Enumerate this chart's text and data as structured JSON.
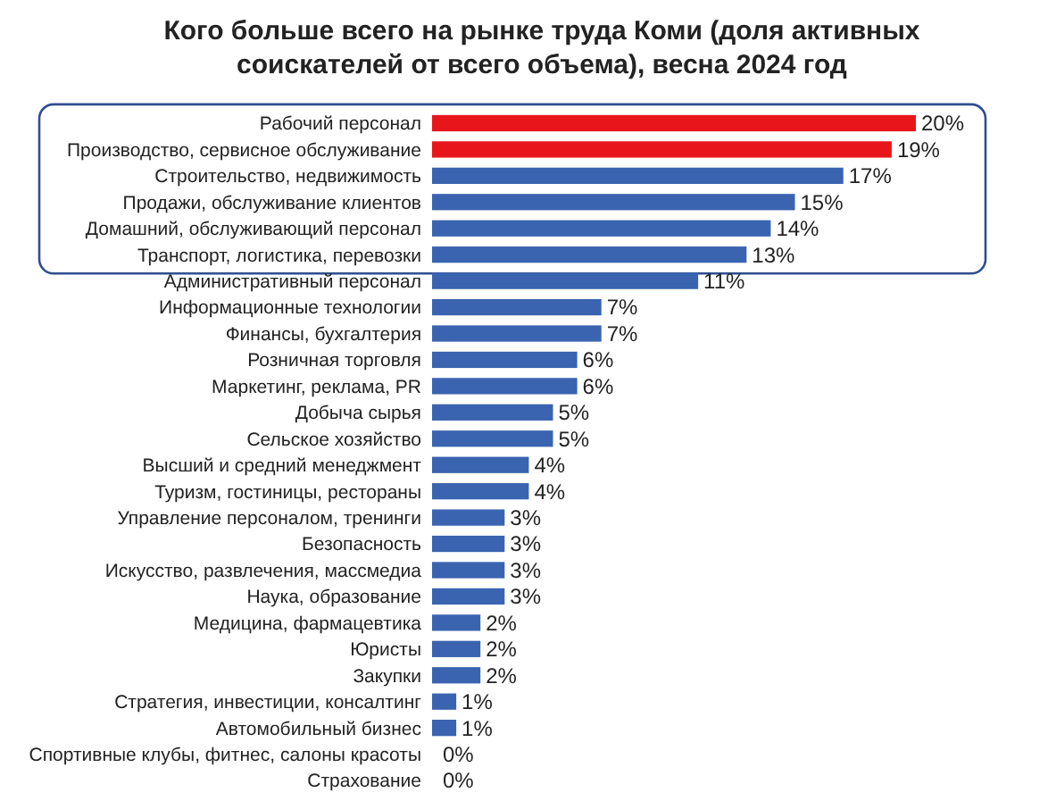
{
  "chart_data": {
    "type": "bar",
    "orientation": "horizontal",
    "title": "Кого больше всего на рынке труда Коми (доля активных\nсоискателей от всего объема), весна 2024 год",
    "categories": [
      "Рабочий персонал",
      "Производство, сервисное обслуживание",
      "Строительство, недвижимость",
      "Продажи, обслуживание клиентов",
      "Домашний, обслуживающий персонал",
      "Транспорт, логистика, перевозки",
      "Административный персонал",
      "Информационные технологии",
      "Финансы, бухгалтерия",
      "Розничная торговля",
      "Маркетинг, реклама, PR",
      "Добыча сырья",
      "Сельское хозяйство",
      "Высший и средний менеджмент",
      "Туризм, гостиницы, рестораны",
      "Управление персоналом, тренинги",
      "Безопасность",
      "Искусство, развлечения, массмедиа",
      "Наука, образование",
      "Медицина, фармацевтика",
      "Юристы",
      "Закупки",
      "Стратегия, инвестиции, консалтинг",
      "Автомобильный бизнес",
      "Спортивные клубы, фитнес, салоны красоты",
      "Страхование"
    ],
    "values": [
      20,
      19,
      17,
      15,
      14,
      13,
      11,
      7,
      7,
      6,
      6,
      5,
      5,
      4,
      4,
      3,
      3,
      3,
      3,
      2,
      2,
      2,
      1,
      1,
      0,
      0
    ],
    "value_labels": [
      "20%",
      "19%",
      "17%",
      "15%",
      "14%",
      "13%",
      "11%",
      "7%",
      "7%",
      "6%",
      "6%",
      "5%",
      "5%",
      "4%",
      "4%",
      "3%",
      "3%",
      "3%",
      "3%",
      "2%",
      "2%",
      "2%",
      "1%",
      "1%",
      "0%",
      "0%"
    ],
    "colors": [
      "#e8151b",
      "#e8151b",
      "#3a64b0",
      "#3a64b0",
      "#3a64b0",
      "#3a64b0",
      "#3a64b0",
      "#3a64b0",
      "#3a64b0",
      "#3a64b0",
      "#3a64b0",
      "#3a64b0",
      "#3a64b0",
      "#3a64b0",
      "#3a64b0",
      "#3a64b0",
      "#3a64b0",
      "#3a64b0",
      "#3a64b0",
      "#3a64b0",
      "#3a64b0",
      "#3a64b0",
      "#3a64b0",
      "#3a64b0",
      "#3a64b0",
      "#3a64b0"
    ]
  }
}
